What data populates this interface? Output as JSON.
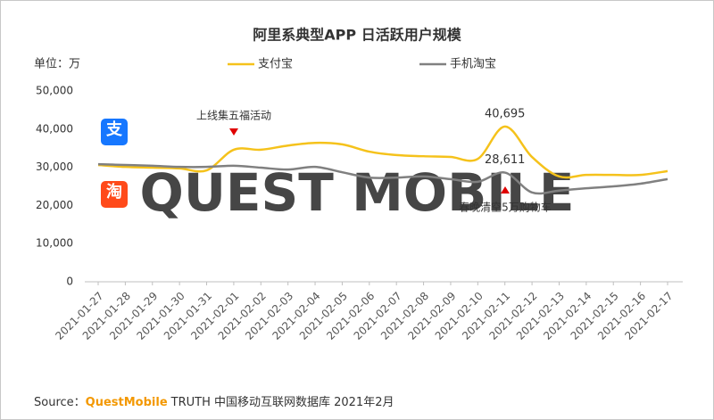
{
  "chart_data": {
    "type": "line",
    "title": "阿里系典型APP 日活跃用户规模",
    "unit_label": "单位：万",
    "categories": [
      "2021-01-27",
      "2021-01-28",
      "2021-01-29",
      "2021-01-30",
      "2021-01-31",
      "2021-02-01",
      "2021-02-02",
      "2021-02-03",
      "2021-02-04",
      "2021-02-05",
      "2021-02-06",
      "2021-02-07",
      "2021-02-08",
      "2021-02-09",
      "2021-02-10",
      "2021-02-11",
      "2021-02-12",
      "2021-02-13",
      "2021-02-14",
      "2021-02-15",
      "2021-02-16",
      "2021-02-17"
    ],
    "series": [
      {
        "name": "支付宝",
        "color": "#f5c21b",
        "values": [
          30600,
          30100,
          29900,
          29700,
          29200,
          34600,
          34600,
          35700,
          36400,
          36000,
          34100,
          33200,
          32900,
          32700,
          32200,
          40695,
          32700,
          27600,
          28000,
          28000,
          28000,
          29000
        ],
        "value_labels": [
          null,
          null,
          null,
          null,
          null,
          null,
          null,
          null,
          null,
          null,
          null,
          null,
          null,
          null,
          null,
          "40,695",
          null,
          null,
          null,
          null,
          null,
          null
        ]
      },
      {
        "name": "手机淘宝",
        "color": "#808080",
        "values": [
          30800,
          30600,
          30400,
          30100,
          30100,
          30400,
          29900,
          29400,
          30100,
          28700,
          27300,
          27300,
          27600,
          26900,
          26200,
          28611,
          23400,
          23900,
          24500,
          25000,
          25700,
          26900
        ],
        "value_labels": [
          null,
          null,
          null,
          null,
          null,
          null,
          null,
          null,
          null,
          null,
          null,
          null,
          null,
          null,
          null,
          "28,611",
          null,
          null,
          null,
          null,
          null,
          null
        ]
      }
    ],
    "ylim": [
      0,
      50000
    ],
    "yticks": [
      0,
      {
        "value": 10000,
        "label": "10,000"
      },
      {
        "value": 20000,
        "label": "20,000"
      },
      {
        "value": 30000,
        "label": "30,000"
      },
      {
        "value": 40000,
        "label": "40,000"
      },
      {
        "value": 50000,
        "label": "50,000"
      }
    ],
    "grid": false,
    "legend": "top",
    "annotations": [
      "上线集五福活动",
      "春晚清空5万购物车"
    ],
    "icons": [
      "支",
      "淘"
    ],
    "watermark": "QUEST MOBILE",
    "source_prefix": "Source：",
    "source_brand": "QuestMobile",
    "source_rest": "TRUTH 中国移动互联网数据库 2021年2月"
  }
}
